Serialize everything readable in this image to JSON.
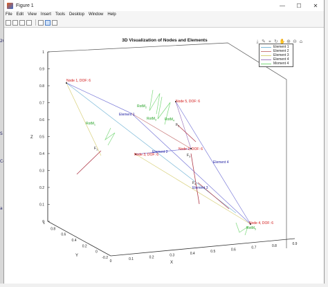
{
  "window": {
    "title": "Figure 1",
    "controls": {
      "minimize": "—",
      "maximize": "☐",
      "close": "✕"
    }
  },
  "menu": [
    "File",
    "Edit",
    "View",
    "Insert",
    "Tools",
    "Desktop",
    "Window",
    "Help"
  ],
  "toolbar_icons": [
    "new-figure-icon",
    "open-file-icon",
    "save-icon",
    "print-icon",
    "link-icon",
    "data-cursor-icon",
    "plot-tools-icon"
  ],
  "axes_toolbar_icons": [
    "export-icon",
    "brush-icon",
    "data-tips-icon",
    "rotate-icon",
    "pan-icon",
    "zoom-in-icon",
    "zoom-out-icon",
    "home-icon"
  ],
  "colors": {
    "element": "#7a7ad8",
    "element_1": "#7ab8d8",
    "element_2": "#c97a7a",
    "element_3": "#d8d07a",
    "element_4": "#a07ac0",
    "moment": "#7ad87a",
    "force": "#b03a4a",
    "node_label": "#d01010",
    "element_label": "#1a1aa0",
    "moment_label": "#20a020"
  },
  "chart_data": {
    "type": "3d-line",
    "title": "3D Visualization of Nodes and Elements",
    "xlabel": "X",
    "ylabel": "Y",
    "zlabel": "Z",
    "xlim": [
      0,
      0.9
    ],
    "ylim": [
      -0.2,
      1
    ],
    "zlim": [
      0,
      1
    ],
    "x_ticks": [
      "0",
      "0.1",
      "0.2",
      "0.3",
      "0.4",
      "0.5",
      "0.6",
      "0.7",
      "0.8",
      "0.9"
    ],
    "y_ticks": [
      "-0.2",
      "0",
      "0.2",
      "0.4",
      "0.6",
      "0.8",
      "1"
    ],
    "z_ticks": [
      "0",
      "0.1",
      "0.2",
      "0.3",
      "0.4",
      "0.5",
      "0.6",
      "0.7",
      "0.8",
      "0.9",
      "1"
    ],
    "grid": false,
    "legend": {
      "placement": "top-right",
      "entries": [
        "Element 1",
        "Element 2",
        "Element 3",
        "Element 4",
        "Moment 4"
      ]
    },
    "node_labels": [
      "Node 1, DOF: 6",
      "Node 2, DOF: 6",
      "Node 3, DOF: 6",
      "Node 4, DOF: 6",
      "Node 5, DOF: 6"
    ],
    "element_labels": [
      "Element 1",
      "Element 2",
      "Element 3",
      "Element 4"
    ],
    "moment_label": "RotM",
    "force_label": "F"
  }
}
